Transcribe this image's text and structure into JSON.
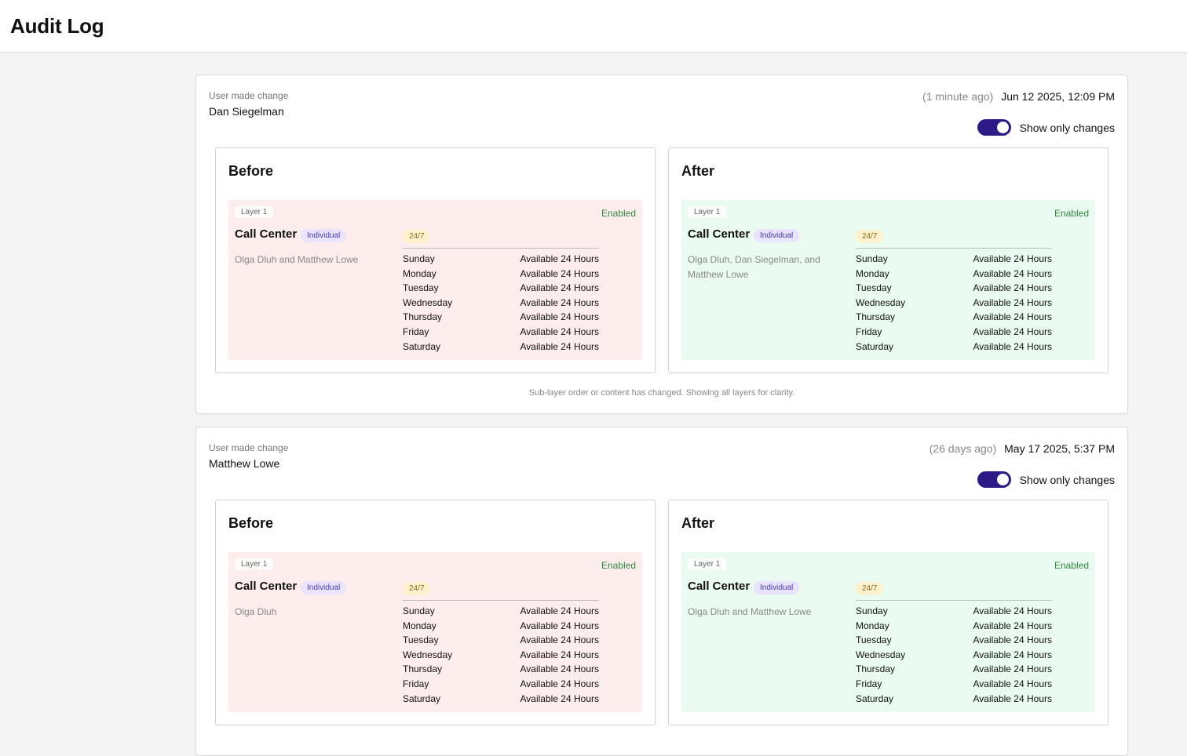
{
  "page": {
    "title": "Audit Log"
  },
  "colors": {
    "toggle_on": "#2e1a87",
    "before_bg": "#fdeeed",
    "after_bg": "#eafbf1",
    "enabled_text": "#2f8a3e"
  },
  "entries": [
    {
      "label": "User made change",
      "user": "Dan Siegelman",
      "relative_time": "(1 minute ago)",
      "timestamp": "Jun 12 2025, 12:09 PM",
      "toggle": {
        "label": "Show only changes",
        "checked": true
      },
      "before": {
        "title": "Before",
        "layer": {
          "tag": "Layer 1",
          "status": "Enabled",
          "name": "Call Center",
          "type": "Individual",
          "members": "Olga Dluh and Matthew Lowe",
          "schedule_badge": "24/7",
          "schedule": [
            {
              "day": "Sunday",
              "hours": "Available 24 Hours"
            },
            {
              "day": "Monday",
              "hours": "Available 24 Hours"
            },
            {
              "day": "Tuesday",
              "hours": "Available 24 Hours"
            },
            {
              "day": "Wednesday",
              "hours": "Available 24 Hours"
            },
            {
              "day": "Thursday",
              "hours": "Available 24 Hours"
            },
            {
              "day": "Friday",
              "hours": "Available 24 Hours"
            },
            {
              "day": "Saturday",
              "hours": "Available 24 Hours"
            }
          ]
        }
      },
      "after": {
        "title": "After",
        "layer": {
          "tag": "Layer 1",
          "status": "Enabled",
          "name": "Call Center",
          "type": "Individual",
          "members": "Olga Dluh, Dan Siegelman, and Matthew Lowe",
          "schedule_badge": "24/7",
          "schedule": [
            {
              "day": "Sunday",
              "hours": "Available 24 Hours"
            },
            {
              "day": "Monday",
              "hours": "Available 24 Hours"
            },
            {
              "day": "Tuesday",
              "hours": "Available 24 Hours"
            },
            {
              "day": "Wednesday",
              "hours": "Available 24 Hours"
            },
            {
              "day": "Thursday",
              "hours": "Available 24 Hours"
            },
            {
              "day": "Friday",
              "hours": "Available 24 Hours"
            },
            {
              "day": "Saturday",
              "hours": "Available 24 Hours"
            }
          ]
        }
      },
      "footnote": "Sub-layer order or content has changed. Showing all layers for clarity."
    },
    {
      "label": "User made change",
      "user": "Matthew Lowe",
      "relative_time": "(26 days ago)",
      "timestamp": "May 17 2025, 5:37 PM",
      "toggle": {
        "label": "Show only changes",
        "checked": true
      },
      "before": {
        "title": "Before",
        "layer": {
          "tag": "Layer 1",
          "status": "Enabled",
          "name": "Call Center",
          "type": "Individual",
          "members": "Olga Dluh",
          "schedule_badge": "24/7",
          "schedule": [
            {
              "day": "Sunday",
              "hours": "Available 24 Hours"
            },
            {
              "day": "Monday",
              "hours": "Available 24 Hours"
            },
            {
              "day": "Tuesday",
              "hours": "Available 24 Hours"
            },
            {
              "day": "Wednesday",
              "hours": "Available 24 Hours"
            },
            {
              "day": "Thursday",
              "hours": "Available 24 Hours"
            },
            {
              "day": "Friday",
              "hours": "Available 24 Hours"
            },
            {
              "day": "Saturday",
              "hours": "Available 24 Hours"
            }
          ]
        }
      },
      "after": {
        "title": "After",
        "layer": {
          "tag": "Layer 1",
          "status": "Enabled",
          "name": "Call Center",
          "type": "Individual",
          "members": "Olga Dluh and Matthew Lowe",
          "schedule_badge": "24/7",
          "schedule": [
            {
              "day": "Sunday",
              "hours": "Available 24 Hours"
            },
            {
              "day": "Monday",
              "hours": "Available 24 Hours"
            },
            {
              "day": "Tuesday",
              "hours": "Available 24 Hours"
            },
            {
              "day": "Wednesday",
              "hours": "Available 24 Hours"
            },
            {
              "day": "Thursday",
              "hours": "Available 24 Hours"
            },
            {
              "day": "Friday",
              "hours": "Available 24 Hours"
            },
            {
              "day": "Saturday",
              "hours": "Available 24 Hours"
            }
          ]
        }
      }
    }
  ]
}
